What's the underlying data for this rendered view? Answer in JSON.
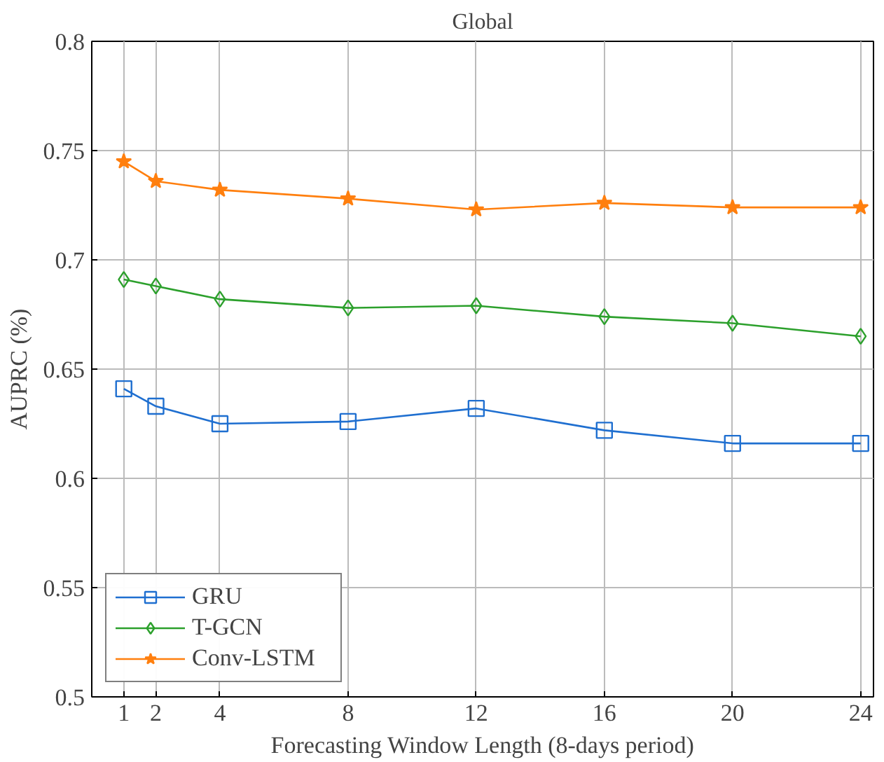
{
  "chart_data": {
    "type": "line",
    "title": "Global",
    "xlabel": "Forecasting Window Length (8-days period)",
    "ylabel": "AUPRC (%)",
    "x": [
      1,
      2,
      4,
      8,
      12,
      16,
      20,
      24
    ],
    "series": [
      {
        "name": "GRU",
        "color": "#1f6fd0",
        "marker": "square",
        "values": [
          0.641,
          0.633,
          0.625,
          0.626,
          0.632,
          0.622,
          0.616,
          0.616
        ]
      },
      {
        "name": "T-GCN",
        "color": "#2ca02c",
        "marker": "diamond",
        "values": [
          0.691,
          0.688,
          0.682,
          0.678,
          0.679,
          0.674,
          0.671,
          0.665
        ]
      },
      {
        "name": "Conv-LSTM",
        "color": "#ff7f0e",
        "marker": "star",
        "values": [
          0.745,
          0.736,
          0.732,
          0.728,
          0.723,
          0.726,
          0.724,
          0.724
        ]
      }
    ],
    "xlim": [
      0,
      24.4
    ],
    "ylim": [
      0.5,
      0.8
    ],
    "xticks": [
      1,
      2,
      4,
      8,
      12,
      16,
      20,
      24
    ],
    "yticks": [
      0.5,
      0.55,
      0.6,
      0.65,
      0.7,
      0.75,
      0.8
    ],
    "grid": true,
    "legend": "bottom left",
    "line_style": "solid"
  }
}
